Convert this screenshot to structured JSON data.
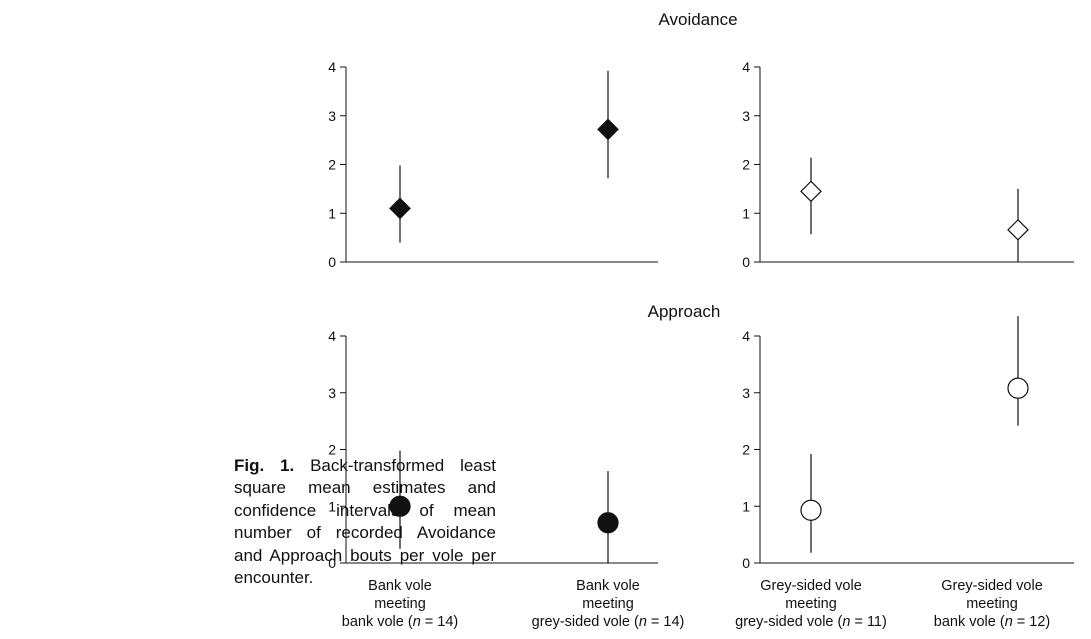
{
  "caption": {
    "label": "Fig. 1.",
    "text": "Back-transformed least square mean estimates and confidence intervals of mean number of recorded Avoidance and Approach bouts per vole per encounter."
  },
  "chart_data": [
    {
      "type": "scatter",
      "title": "Avoidance",
      "panel": "top-left",
      "ylim": [
        0,
        4
      ],
      "yticks": [
        0,
        1,
        2,
        3,
        4
      ],
      "marker": "diamond-filled",
      "categories": [
        "Bank vole meeting bank vole (n = 14)",
        "Bank vole meeting grey-sided vole (n = 14)"
      ],
      "values": [
        1.1,
        2.72
      ],
      "ci_low": [
        0.4,
        1.72
      ],
      "ci_high": [
        1.98,
        3.92
      ]
    },
    {
      "type": "scatter",
      "title": "",
      "panel": "top-right",
      "ylim": [
        0,
        4
      ],
      "yticks": [
        0,
        1,
        2,
        3,
        4
      ],
      "marker": "diamond-open",
      "categories": [
        "Grey-sided vole meeting grey-sided vole (n = 11)",
        "Grey-sided vole meeting bank vole (n = 12)"
      ],
      "values": [
        1.45,
        0.66
      ],
      "ci_low": [
        0.57,
        0.0
      ],
      "ci_high": [
        2.14,
        1.5
      ]
    },
    {
      "type": "scatter",
      "title": "Approach",
      "panel": "bottom-left",
      "ylim": [
        0,
        4
      ],
      "yticks": [
        0,
        1,
        2,
        3,
        4
      ],
      "marker": "circle-filled",
      "categories": [
        "Bank vole meeting bank vole (n = 14)",
        "Bank vole meeting grey-sided vole (n = 14)"
      ],
      "values": [
        1.0,
        0.71
      ],
      "ci_low": [
        0.25,
        0.0
      ],
      "ci_high": [
        1.98,
        1.62
      ]
    },
    {
      "type": "scatter",
      "title": "",
      "panel": "bottom-right",
      "ylim": [
        0,
        4
      ],
      "yticks": [
        0,
        1,
        2,
        3,
        4
      ],
      "marker": "circle-open",
      "categories": [
        "Grey-sided vole meeting grey-sided vole (n = 11)",
        "Grey-sided vole meeting bank vole (n = 12)"
      ],
      "values": [
        0.93,
        3.08
      ],
      "ci_low": [
        0.18,
        2.42
      ],
      "ci_high": [
        1.92,
        4.35
      ]
    }
  ],
  "x_categories": [
    {
      "line1": "Bank vole",
      "line2": "meeting",
      "pre": "bank vole (",
      "n": "n",
      "post": " = 14)"
    },
    {
      "line1": "Bank vole",
      "line2": "meeting",
      "pre": "grey-sided vole (",
      "n": "n",
      "post": " = 14)"
    },
    {
      "line1": "Grey-sided vole",
      "line2": "meeting",
      "pre": "grey-sided vole (",
      "n": "n",
      "post": " = 11)"
    },
    {
      "line1": "Grey-sided vole",
      "line2": "meeting",
      "pre": "bank vole (",
      "n": "n",
      "post": " = 12)"
    }
  ],
  "colors": {
    "ink": "#111111",
    "open_fill": "#ffffff"
  }
}
